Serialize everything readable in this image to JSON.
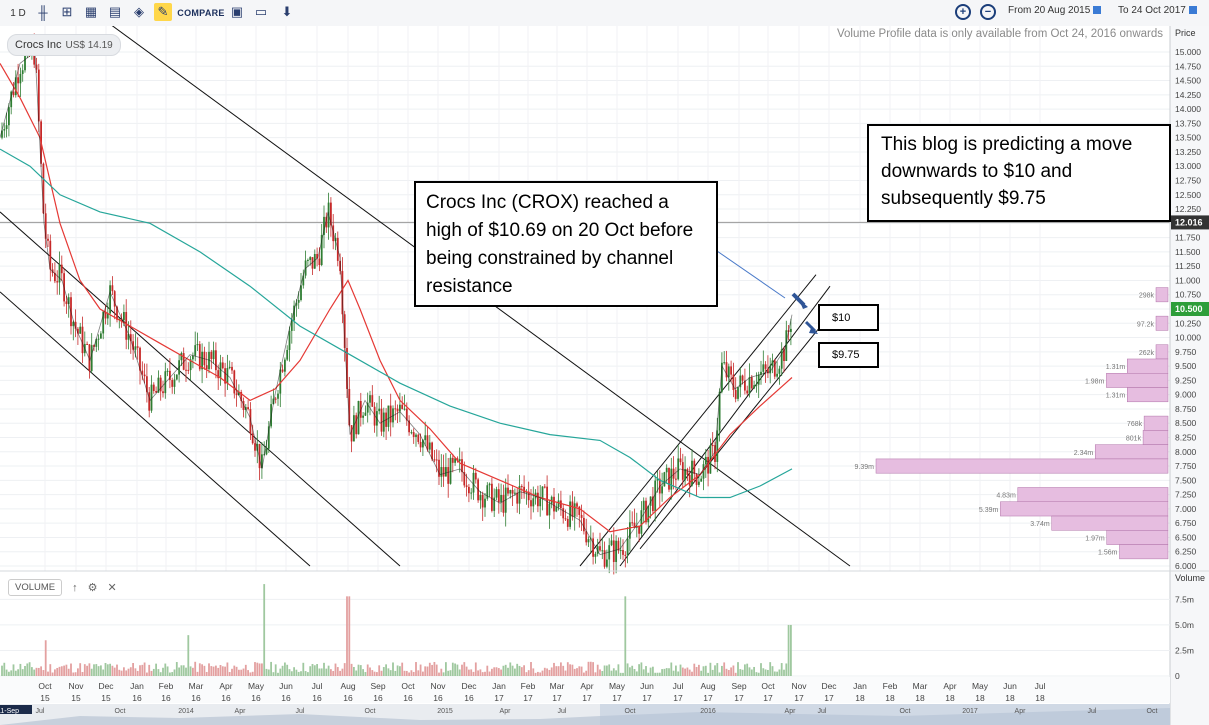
{
  "toolbar": {
    "interval": "1 D",
    "compare_label": "COMPARE",
    "from_label": "From",
    "from_date": "20 Aug 2015",
    "to_label": "To",
    "to_date": "24 Oct 2017",
    "icon_names": [
      "candles-icon",
      "draw-icon",
      "indicators-icon",
      "overlay-icon",
      "notes-icon",
      "fill-icon",
      "pencil-icon",
      "save-icon",
      "open-icon",
      "download-icon",
      "zoom-in-icon",
      "zoom-out-icon"
    ]
  },
  "instrument": {
    "name": "Crocs Inc",
    "currency": "US$",
    "price": "14.19"
  },
  "volume_profile_note": "Volume Profile data is only available from Oct 24, 2016 onwards",
  "volume_panel": {
    "label": "VOLUME",
    "up_icon": "↑",
    "gear_icon": "⚙",
    "close_icon": "✕"
  },
  "annotations": {
    "left": "Crocs Inc (CROX) reached a high of $10.69 on 20 Oct before being constrained by channel resistance",
    "right": "This blog is predicting a move downwards to $10 and subsequently $9.75",
    "target1": "$10",
    "target2": "$9.75"
  },
  "colors": {
    "up": "#2e7d32",
    "down": "#c62828",
    "ma_short": "#e53935",
    "ma_long": "#26a69a",
    "profile": "#e6bde0",
    "profile_border": "#b072a8",
    "last_price": "#2e9e3a",
    "ref_price": "#333333"
  },
  "chart_data": {
    "type": "candlestick",
    "y_axis_title": "Price",
    "volume_axis_title": "Volume",
    "ylim": [
      6.0,
      15.0
    ],
    "price_ticks": [
      "15.000",
      "14.750",
      "14.500",
      "14.250",
      "14.000",
      "13.750",
      "13.500",
      "13.250",
      "13.000",
      "12.750",
      "12.500",
      "12.250",
      "12.000",
      "11.750",
      "11.500",
      "11.250",
      "11.000",
      "10.750",
      "10.500",
      "10.250",
      "10.000",
      "9.750",
      "9.500",
      "9.250",
      "9.000",
      "8.750",
      "8.500",
      "8.250",
      "8.000",
      "7.750",
      "7.500",
      "7.250",
      "7.000",
      "6.750",
      "6.500",
      "6.250",
      "6.000"
    ],
    "volume_ticks": [
      "7.5m",
      "5.0m",
      "2.5m",
      "0"
    ],
    "reference_price": "12.016",
    "last_price": "10.500",
    "x_labels": [
      [
        "Oct",
        "15"
      ],
      [
        "Nov",
        "15"
      ],
      [
        "Dec",
        "15"
      ],
      [
        "Jan",
        "16"
      ],
      [
        "Feb",
        "16"
      ],
      [
        "Mar",
        "16"
      ],
      [
        "Apr",
        "16"
      ],
      [
        "May",
        "16"
      ],
      [
        "Jun",
        "16"
      ],
      [
        "Jul",
        "16"
      ],
      [
        "Aug",
        "16"
      ],
      [
        "Sep",
        "16"
      ],
      [
        "Oct",
        "16"
      ],
      [
        "Nov",
        "16"
      ],
      [
        "Dec",
        "16"
      ],
      [
        "Jan",
        "17"
      ],
      [
        "Feb",
        "17"
      ],
      [
        "Mar",
        "17"
      ],
      [
        "Apr",
        "17"
      ],
      [
        "May",
        "17"
      ],
      [
        "Jun",
        "17"
      ],
      [
        "Jul",
        "17"
      ],
      [
        "Aug",
        "17"
      ],
      [
        "Sep",
        "17"
      ],
      [
        "Oct",
        "17"
      ],
      [
        "Nov",
        "17"
      ],
      [
        "Dec",
        "17"
      ],
      [
        "Jan",
        "18"
      ],
      [
        "Feb",
        "18"
      ],
      [
        "Mar",
        "18"
      ],
      [
        "Apr",
        "18"
      ],
      [
        "May",
        "18"
      ],
      [
        "Jun",
        "18"
      ],
      [
        "Jul",
        "18"
      ]
    ],
    "nav_labels": [
      "11-Sep",
      "Jul",
      "Oct",
      "2014",
      "Apr",
      "Jul",
      "Oct",
      "2015",
      "Apr",
      "Jul",
      "Oct",
      "2016",
      "Apr",
      "Jul",
      "Oct",
      "2017",
      "Apr",
      "Jul",
      "Oct"
    ],
    "close_path": [
      [
        0,
        13.5
      ],
      [
        20,
        14.8
      ],
      [
        35,
        15.0
      ],
      [
        44,
        12.0
      ],
      [
        50,
        11.2
      ],
      [
        62,
        11.0
      ],
      [
        75,
        10.2
      ],
      [
        90,
        9.6
      ],
      [
        110,
        10.8
      ],
      [
        130,
        10.0
      ],
      [
        150,
        8.9
      ],
      [
        170,
        9.3
      ],
      [
        190,
        9.7
      ],
      [
        210,
        9.6
      ],
      [
        230,
        9.3
      ],
      [
        250,
        8.6
      ],
      [
        262,
        7.7
      ],
      [
        275,
        9.0
      ],
      [
        290,
        10.2
      ],
      [
        305,
        11.2
      ],
      [
        318,
        11.4
      ],
      [
        328,
        12.2
      ],
      [
        340,
        11.4
      ],
      [
        350,
        8.3
      ],
      [
        365,
        8.9
      ],
      [
        380,
        8.5
      ],
      [
        400,
        8.7
      ],
      [
        420,
        8.3
      ],
      [
        440,
        7.6
      ],
      [
        460,
        7.7
      ],
      [
        480,
        7.3
      ],
      [
        500,
        7.1
      ],
      [
        520,
        7.3
      ],
      [
        540,
        7.2
      ],
      [
        560,
        7.0
      ],
      [
        580,
        6.8
      ],
      [
        600,
        6.2
      ],
      [
        620,
        6.3
      ],
      [
        640,
        6.8
      ],
      [
        660,
        7.4
      ],
      [
        680,
        7.7
      ],
      [
        700,
        7.6
      ],
      [
        715,
        8.0
      ],
      [
        722,
        9.5
      ],
      [
        735,
        9.1
      ],
      [
        750,
        9.3
      ],
      [
        770,
        9.4
      ],
      [
        785,
        9.8
      ],
      [
        792,
        10.4
      ]
    ],
    "ma_short_path": [
      [
        0,
        14.8
      ],
      [
        20,
        14.2
      ],
      [
        40,
        13.5
      ],
      [
        60,
        12.0
      ],
      [
        80,
        11.0
      ],
      [
        100,
        10.5
      ],
      [
        130,
        10.2
      ],
      [
        160,
        9.9
      ],
      [
        190,
        9.6
      ],
      [
        220,
        9.3
      ],
      [
        250,
        8.9
      ],
      [
        275,
        9.1
      ],
      [
        300,
        9.6
      ],
      [
        330,
        10.5
      ],
      [
        348,
        11.0
      ],
      [
        360,
        10.5
      ],
      [
        380,
        9.6
      ],
      [
        400,
        8.9
      ],
      [
        430,
        8.4
      ],
      [
        460,
        7.8
      ],
      [
        500,
        7.5
      ],
      [
        540,
        7.2
      ],
      [
        580,
        7.0
      ],
      [
        610,
        6.6
      ],
      [
        640,
        6.7
      ],
      [
        670,
        7.2
      ],
      [
        700,
        7.6
      ],
      [
        730,
        8.3
      ],
      [
        760,
        8.8
      ],
      [
        792,
        9.3
      ]
    ],
    "ma_long_path": [
      [
        0,
        13.3
      ],
      [
        30,
        13.0
      ],
      [
        60,
        12.5
      ],
      [
        100,
        12.2
      ],
      [
        150,
        12.0
      ],
      [
        200,
        11.5
      ],
      [
        250,
        10.9
      ],
      [
        300,
        10.2
      ],
      [
        350,
        9.7
      ],
      [
        400,
        9.2
      ],
      [
        450,
        8.8
      ],
      [
        500,
        8.5
      ],
      [
        550,
        8.3
      ],
      [
        600,
        8.2
      ],
      [
        630,
        7.9
      ],
      [
        660,
        7.5
      ],
      [
        700,
        7.2
      ],
      [
        730,
        7.2
      ],
      [
        760,
        7.4
      ],
      [
        792,
        7.7
      ]
    ],
    "channels": [
      {
        "from": [
          0,
          16.9
        ],
        "to": [
          850,
          6.0
        ]
      },
      {
        "from": [
          0,
          12.2
        ],
        "to": [
          400,
          6.0
        ]
      },
      {
        "from": [
          0,
          10.8
        ],
        "to": [
          310,
          6.0
        ]
      },
      {
        "from": [
          580,
          6.0
        ],
        "to": [
          816,
          11.1
        ]
      },
      {
        "from": [
          620,
          6.0
        ],
        "to": [
          830,
          10.9
        ]
      },
      {
        "from": [
          640,
          6.3
        ],
        "to": [
          830,
          10.4
        ]
      }
    ],
    "volume_profile": [
      {
        "price": 10.75,
        "vol": "298k"
      },
      {
        "price": 10.25,
        "vol": "97.2k"
      },
      {
        "price": 9.75,
        "vol": "262k"
      },
      {
        "price": 9.5,
        "vol": "1.31m"
      },
      {
        "price": 9.25,
        "vol": "1.98m"
      },
      {
        "price": 9.0,
        "vol": "1.31m"
      },
      {
        "price": 8.5,
        "vol": "768k"
      },
      {
        "price": 8.25,
        "vol": "801k"
      },
      {
        "price": 8.0,
        "vol": "2.34m"
      },
      {
        "price": 7.75,
        "vol": "9.39m"
      },
      {
        "price": 7.25,
        "vol": "4.83m"
      },
      {
        "price": 7.0,
        "vol": "5.39m"
      },
      {
        "price": 6.75,
        "vol": "3.74m"
      },
      {
        "price": 6.5,
        "vol": "1.97m"
      },
      {
        "price": 6.25,
        "vol": "1.56m"
      }
    ],
    "volume_spikes": [
      [
        45,
        3.5
      ],
      [
        188,
        4.0
      ],
      [
        265,
        9.0
      ],
      [
        348,
        7.8
      ],
      [
        625,
        7.8
      ],
      [
        790,
        5.0
      ]
    ]
  }
}
